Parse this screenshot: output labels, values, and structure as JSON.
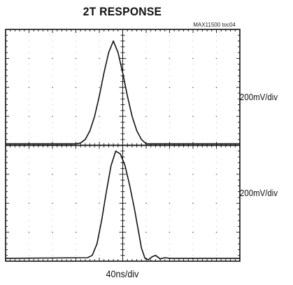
{
  "chart_data": {
    "type": "line",
    "title": "2T RESPONSE",
    "tag": "MAX11500 toc04",
    "xlabel": "40ns/div",
    "divisions": {
      "x": 10,
      "y": 8
    },
    "grid": true,
    "xlim": [
      0,
      10
    ],
    "channels": [
      {
        "scale": "200mV/div",
        "ylim": [
          0,
          4
        ],
        "x": [
          0,
          3.0,
          3.2,
          3.4,
          3.6,
          3.8,
          4.0,
          4.2,
          4.4,
          4.6,
          4.8,
          5.0,
          5.2,
          5.4,
          5.6,
          5.8,
          6.0,
          10
        ],
        "y": [
          0.05,
          0.05,
          0.08,
          0.2,
          0.5,
          1.0,
          1.7,
          2.5,
          3.2,
          3.6,
          3.2,
          2.5,
          1.7,
          1.0,
          0.5,
          0.2,
          0.05,
          0.05
        ]
      },
      {
        "scale": "200mV/div",
        "ylim": [
          0,
          4
        ],
        "x": [
          0,
          3.5,
          3.7,
          3.9,
          4.1,
          4.3,
          4.5,
          4.7,
          4.9,
          5.1,
          5.3,
          5.5,
          5.7,
          5.8,
          5.95,
          6.1,
          6.25,
          6.4,
          6.6,
          6.8,
          7.0,
          10
        ],
        "y": [
          0.1,
          0.12,
          0.2,
          0.6,
          1.4,
          2.4,
          3.3,
          3.8,
          3.7,
          3.3,
          2.6,
          1.8,
          0.9,
          0.45,
          0.1,
          0.05,
          0.15,
          0.2,
          0.08,
          0.12,
          0.1,
          0.1
        ]
      }
    ]
  }
}
